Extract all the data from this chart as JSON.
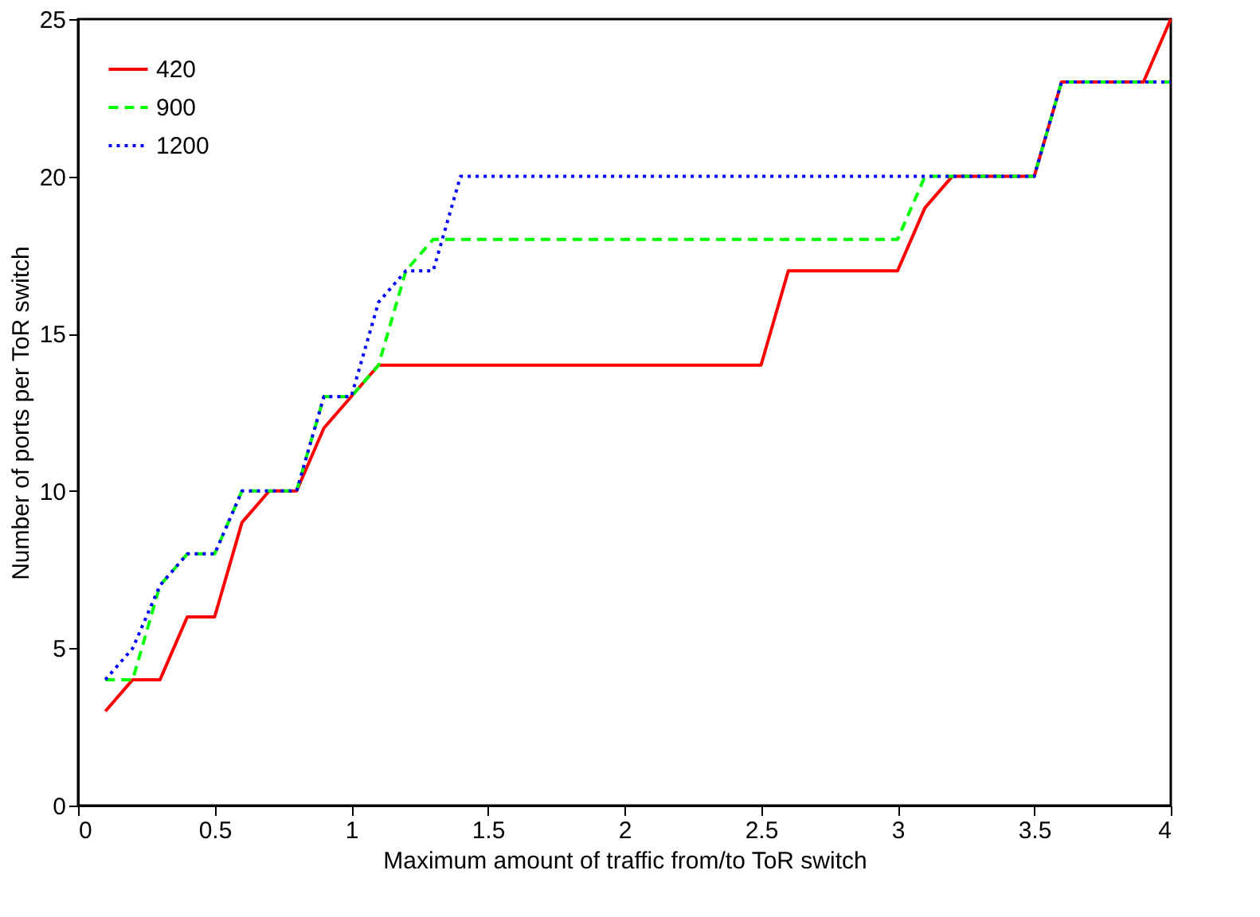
{
  "chart_data": {
    "type": "line",
    "xlabel": "Maximum amount of traffic from/to ToR switch",
    "ylabel": "Number of ports per ToR switch",
    "x": [
      0.1,
      0.2,
      0.3,
      0.4,
      0.5,
      0.6,
      0.7,
      0.8,
      0.9,
      1.0,
      1.1,
      1.2,
      1.3,
      1.4,
      1.5,
      1.6,
      1.7,
      1.8,
      1.9,
      2.0,
      2.1,
      2.2,
      2.3,
      2.4,
      2.5,
      2.6,
      2.7,
      2.8,
      2.9,
      3.0,
      3.1,
      3.2,
      3.3,
      3.4,
      3.5,
      3.6,
      3.7,
      3.8,
      3.9,
      4.0
    ],
    "series": [
      {
        "name": "420",
        "color": "#ff0000",
        "line_style": "solid",
        "values": [
          3,
          4,
          4,
          6,
          6,
          9,
          10,
          10,
          12,
          13,
          14,
          14,
          14,
          14,
          14,
          14,
          14,
          14,
          14,
          14,
          14,
          14,
          14,
          14,
          14,
          17,
          17,
          17,
          17,
          17,
          19,
          20,
          20,
          20,
          20,
          23,
          23,
          23,
          23,
          25
        ]
      },
      {
        "name": "900",
        "color": "#00ff00",
        "line_style": "dashed",
        "values": [
          4,
          4,
          7,
          8,
          8,
          10,
          10,
          10,
          13,
          13,
          14,
          17,
          18,
          18,
          18,
          18,
          18,
          18,
          18,
          18,
          18,
          18,
          18,
          18,
          18,
          18,
          18,
          18,
          18,
          18,
          20,
          20,
          20,
          20,
          20,
          23,
          23,
          23,
          23,
          23
        ]
      },
      {
        "name": "1200",
        "color": "#0000ff",
        "line_style": "dotted",
        "values": [
          4,
          5,
          7,
          8,
          8,
          10,
          10,
          10,
          13,
          13,
          16,
          17,
          17,
          20,
          20,
          20,
          20,
          20,
          20,
          20,
          20,
          20,
          20,
          20,
          20,
          20,
          20,
          20,
          20,
          20,
          20,
          20,
          20,
          20,
          20,
          23,
          23,
          23,
          23,
          23
        ]
      }
    ],
    "xlim": [
      0,
      4
    ],
    "xticks": [
      0,
      0.5,
      1,
      1.5,
      2,
      2.5,
      3,
      3.5,
      4
    ],
    "ylim": [
      0,
      25
    ],
    "yticks": [
      0,
      5,
      10,
      15,
      20,
      25
    ],
    "grid": false,
    "legend": "top left",
    "marker": "none"
  }
}
